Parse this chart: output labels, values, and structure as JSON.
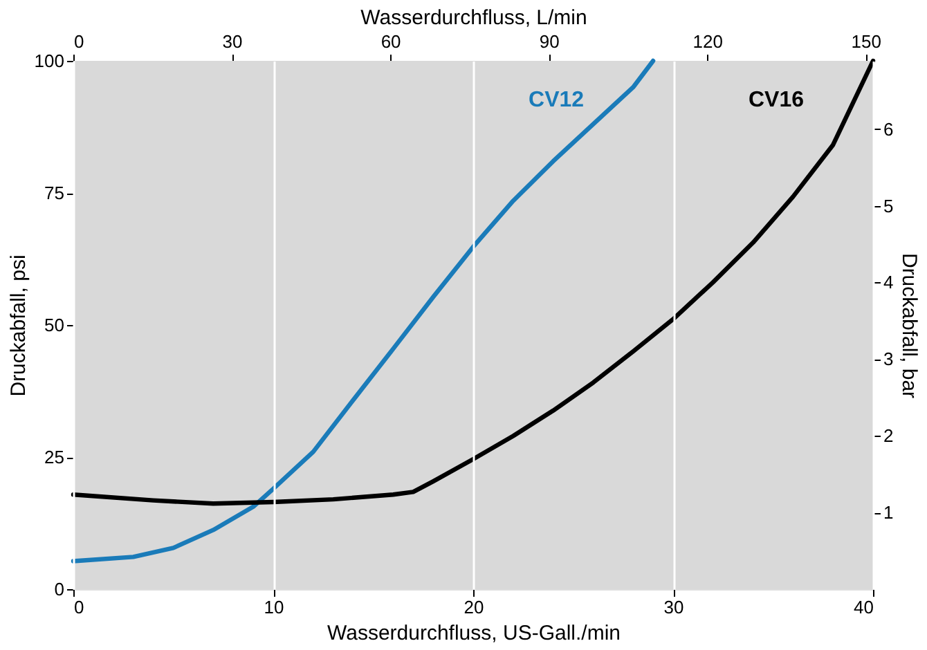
{
  "chart_data": {
    "type": "line",
    "xlabel": "Wasserdurchfluss, US-Gall./min",
    "x2label": "Wasserdurchfluss, L/min",
    "ylabel": "Druckabfall, psi",
    "y2label": "Druckabfall, bar",
    "xlim": [
      0,
      40
    ],
    "xticks": [
      0,
      10,
      20,
      30,
      40
    ],
    "ylim": [
      0,
      100
    ],
    "yticks": [
      0,
      25,
      50,
      75,
      100
    ],
    "x2lim": [
      0,
      151.4
    ],
    "x2ticks": [
      0,
      30,
      60,
      90,
      120,
      150
    ],
    "y2lim": [
      0,
      6.89
    ],
    "y2ticks": [
      1,
      2,
      3,
      4,
      5,
      6
    ],
    "grid": "x",
    "series": [
      {
        "name": "CV12",
        "color": "#1a7bb9",
        "x": [
          0,
          3,
          5,
          7,
          9,
          10,
          12,
          14,
          16,
          18,
          20,
          22,
          24,
          26,
          28,
          29
        ],
        "values": [
          5.3,
          6.1,
          7.8,
          11.2,
          15.6,
          19,
          26,
          35.8,
          45.5,
          55.3,
          64.8,
          73.5,
          81,
          88,
          95,
          100
        ]
      },
      {
        "name": "CV16",
        "color": "#000000",
        "x": [
          0,
          4,
          7,
          10,
          13,
          16,
          17,
          18,
          20,
          22,
          24,
          26,
          28,
          30,
          32,
          34,
          36,
          38,
          40
        ],
        "values": [
          17.9,
          16.8,
          16.2,
          16.5,
          17,
          17.9,
          18.4,
          20.4,
          24.6,
          29,
          33.8,
          39.1,
          45,
          51.1,
          58.1,
          65.6,
          74.3,
          84.1,
          100
        ]
      }
    ]
  }
}
